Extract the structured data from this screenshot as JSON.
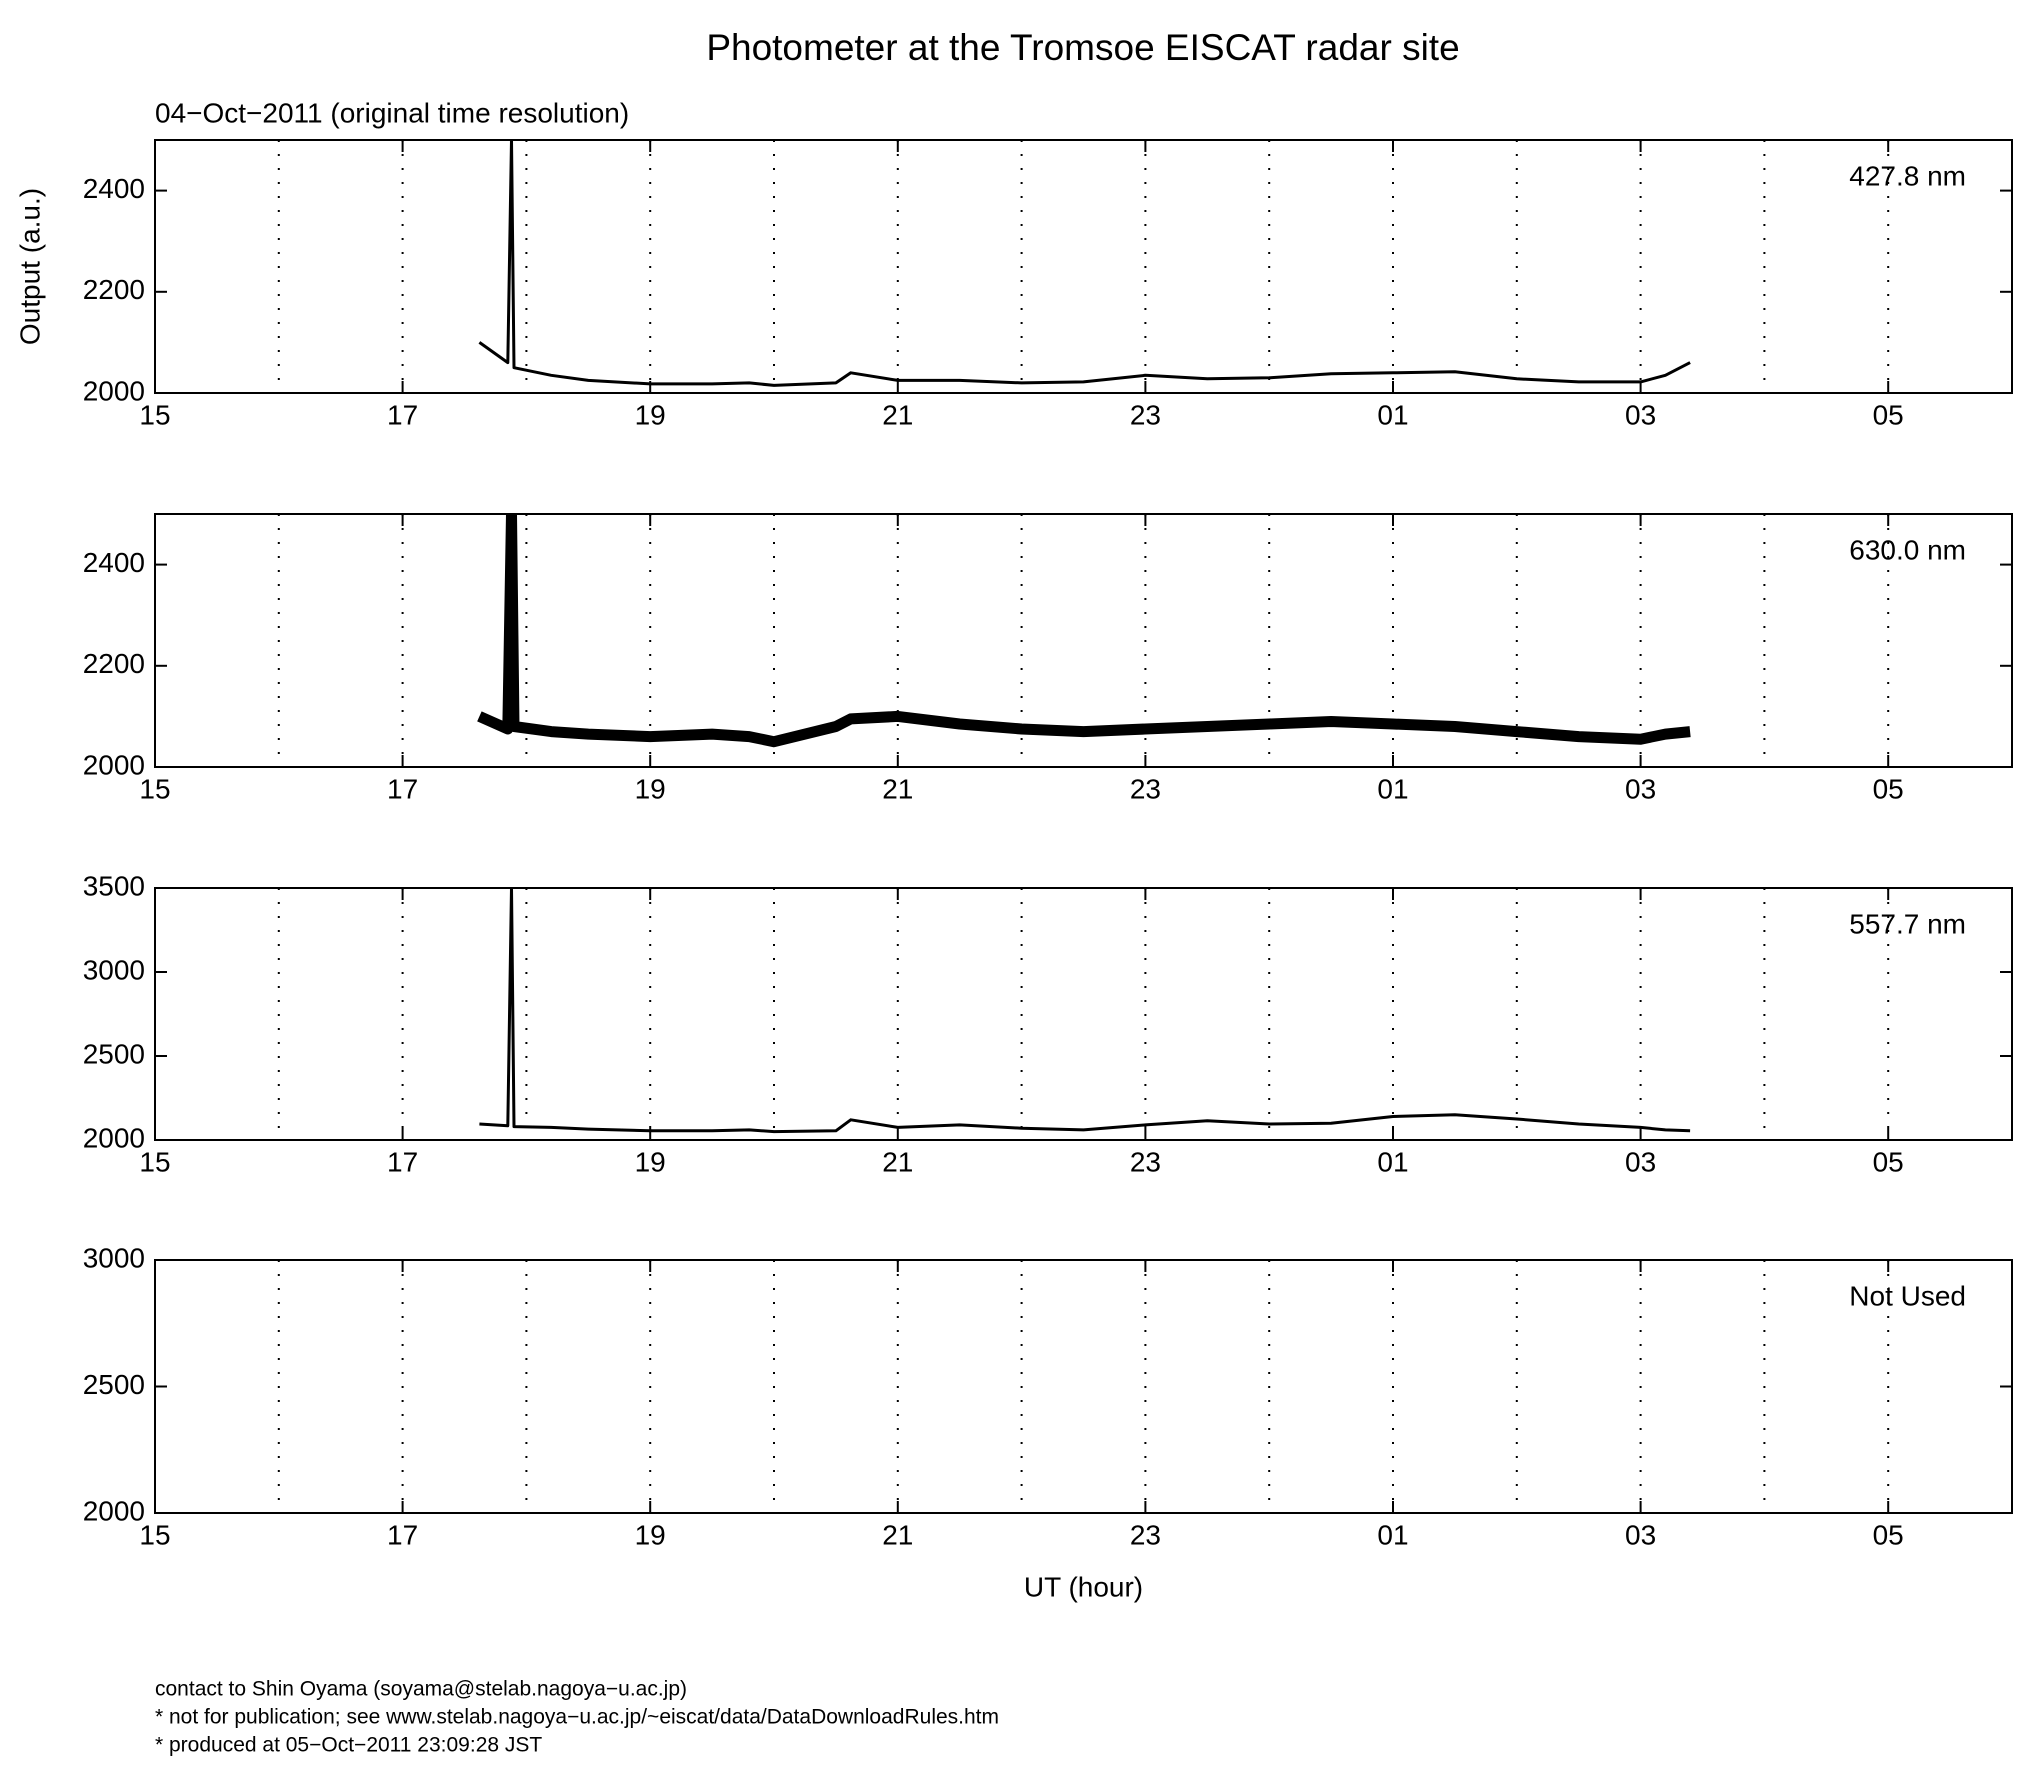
{
  "title": "Photometer at the Tromsoe EISCAT radar site",
  "subtitle": "04−Oct−2011 (original time resolution)",
  "footer": [
    "contact to Shin Oyama (soyama@stelab.nagoya−u.ac.jp)",
    "* not for publication; see www.stelab.nagoya−u.ac.jp/~eiscat/data/DataDownloadRules.htm",
    "* produced at 05−Oct−2011 23:09:28 JST"
  ],
  "chart_data": [
    {
      "type": "line",
      "label": "427.8 nm",
      "ylabel": "Output (a.u.)",
      "xlim": [
        15,
        30
      ],
      "xticks": [
        15,
        17,
        19,
        21,
        23,
        {
          "value": 25,
          "label": "01"
        },
        {
          "value": 27,
          "label": "03"
        },
        {
          "value": 29,
          "label": "05"
        }
      ],
      "xminor": [
        16,
        18,
        20,
        22,
        24,
        26,
        28
      ],
      "grid": true,
      "ylim": [
        2000,
        2500
      ],
      "yticks": [
        2000,
        2200,
        2400
      ],
      "series": [
        {
          "color": "#000000",
          "x": [
            17.62,
            17.85,
            17.88,
            17.9,
            18.2,
            18.5,
            19,
            19.5,
            19.8,
            20,
            20.5,
            20.62,
            21,
            21.5,
            22,
            22.5,
            23,
            23.5,
            24,
            24.5,
            25,
            25.5,
            26,
            26.5,
            27,
            27.2,
            27.4
          ],
          "values": [
            2100,
            2060,
            2500,
            2050,
            2035,
            2025,
            2018,
            2018,
            2020,
            2015,
            2020,
            2040,
            2025,
            2025,
            2020,
            2022,
            2035,
            2028,
            2030,
            2038,
            2040,
            2042,
            2028,
            2022,
            2022,
            2035,
            2060
          ]
        }
      ]
    },
    {
      "type": "line",
      "label": "630.0 nm",
      "xlim": [
        15,
        30
      ],
      "xticks": [
        15,
        17,
        19,
        21,
        23,
        {
          "value": 25,
          "label": "01"
        },
        {
          "value": 27,
          "label": "03"
        },
        {
          "value": 29,
          "label": "05"
        }
      ],
      "xminor": [
        16,
        18,
        20,
        22,
        24,
        26,
        28
      ],
      "grid": true,
      "ylim": [
        2000,
        2500
      ],
      "yticks": [
        2000,
        2200,
        2400
      ],
      "series": [
        {
          "color": "#000000",
          "x": [
            17.62,
            17.85,
            17.88,
            17.9,
            18.2,
            18.5,
            19,
            19.5,
            19.8,
            20,
            20.5,
            20.62,
            21,
            21.5,
            22,
            22.5,
            23,
            23.5,
            24,
            24.5,
            25,
            25.5,
            26,
            26.5,
            27,
            27.2,
            27.4
          ],
          "values": [
            2100,
            2075,
            2500,
            2080,
            2070,
            2065,
            2060,
            2065,
            2060,
            2050,
            2080,
            2095,
            2100,
            2085,
            2075,
            2070,
            2075,
            2080,
            2085,
            2090,
            2085,
            2080,
            2070,
            2060,
            2055,
            2065,
            2070
          ]
        }
      ]
    },
    {
      "type": "line",
      "label": "557.7 nm",
      "xlim": [
        15,
        30
      ],
      "xticks": [
        15,
        17,
        19,
        21,
        23,
        {
          "value": 25,
          "label": "01"
        },
        {
          "value": 27,
          "label": "03"
        },
        {
          "value": 29,
          "label": "05"
        }
      ],
      "xminor": [
        16,
        18,
        20,
        22,
        24,
        26,
        28
      ],
      "grid": true,
      "ylim": [
        2000,
        3500
      ],
      "yticks": [
        2000,
        2500,
        3000,
        3500
      ],
      "series": [
        {
          "color": "#000000",
          "x": [
            17.62,
            17.85,
            17.88,
            17.9,
            18.2,
            18.5,
            19,
            19.5,
            19.8,
            20,
            20.5,
            20.62,
            21,
            21.5,
            22,
            22.5,
            23,
            23.5,
            24,
            24.5,
            25,
            25.5,
            26,
            26.5,
            27,
            27.2,
            27.4
          ],
          "values": [
            2095,
            2085,
            3500,
            2080,
            2075,
            2065,
            2055,
            2055,
            2060,
            2050,
            2055,
            2120,
            2075,
            2090,
            2070,
            2060,
            2090,
            2115,
            2095,
            2100,
            2140,
            2150,
            2125,
            2095,
            2075,
            2060,
            2055
          ]
        }
      ]
    },
    {
      "type": "line",
      "label": "Not Used",
      "xlabel": "UT (hour)",
      "xlim": [
        15,
        30
      ],
      "xticks": [
        15,
        17,
        19,
        21,
        23,
        {
          "value": 25,
          "label": "01"
        },
        {
          "value": 27,
          "label": "03"
        },
        {
          "value": 29,
          "label": "05"
        }
      ],
      "xminor": [
        16,
        18,
        20,
        22,
        24,
        26,
        28
      ],
      "grid": true,
      "ylim": [
        2000,
        3000
      ],
      "yticks": [
        2000,
        2500,
        3000
      ],
      "series": []
    }
  ]
}
